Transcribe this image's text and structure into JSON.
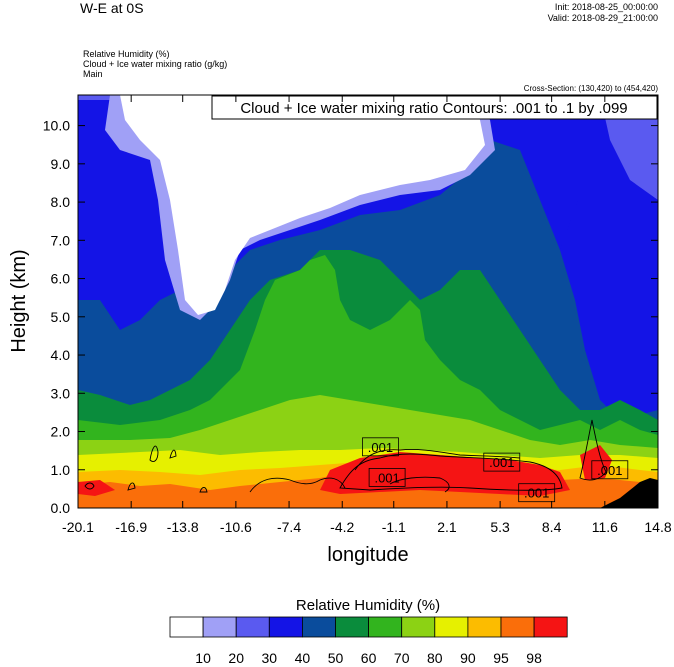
{
  "header": {
    "title": "W-E at 0S",
    "init": "Init: 2018-08-25_00:00:00",
    "valid": "Valid: 2018-08-29_21:00:00",
    "fields": [
      "Relative Humidity   (%)",
      "Cloud + Ice water mixing ratio   (g/kg)",
      "Main"
    ],
    "cross_section": "Cross-Section: (130,420) to (454,420)"
  },
  "chart_data": {
    "type": "heatmap",
    "title": "W-E at 0S",
    "xlabel": "longitude",
    "ylabel": "Height (km)",
    "x_ticks": [
      "-20.1",
      "-16.9",
      "-13.8",
      "-10.6",
      "-7.4",
      "-4.2",
      "-1.1",
      "2.1",
      "5.3",
      "8.4",
      "11.6",
      "14.8"
    ],
    "xlim": [
      -20.1,
      14.8
    ],
    "y_ticks": [
      "0.0",
      "1.0",
      "2.0",
      "3.0",
      "4.0",
      "5.0",
      "6.0",
      "7.0",
      "8.0",
      "9.0",
      "10.0"
    ],
    "ylim": [
      0,
      10.8
    ],
    "contour_info": "Cloud + Ice water mixing ratio Contours: .001 to .1 by .099",
    "contour_labels": [
      {
        "text": ".001",
        "x": -1.9,
        "y": 1.6
      },
      {
        "text": ".001",
        "x": -1.5,
        "y": 0.8
      },
      {
        "text": ".001",
        "x": 5.4,
        "y": 1.2
      },
      {
        "text": ".001",
        "x": 7.5,
        "y": 0.4
      },
      {
        "text": ".001",
        "x": 11.9,
        "y": 1.0
      }
    ],
    "colorbar": {
      "title": "Relative Humidity  (%)",
      "labels": [
        "10",
        "20",
        "30",
        "40",
        "50",
        "60",
        "70",
        "80",
        "90",
        "95",
        "98"
      ],
      "colors": [
        "#ffffff",
        "#a0a0f6",
        "#5a5af0",
        "#1414e6",
        "#0a4c9c",
        "#0a8c3c",
        "#32b41e",
        "#8cd214",
        "#e6f000",
        "#fcbc00",
        "#fa6e0a",
        "#f51414"
      ]
    }
  }
}
